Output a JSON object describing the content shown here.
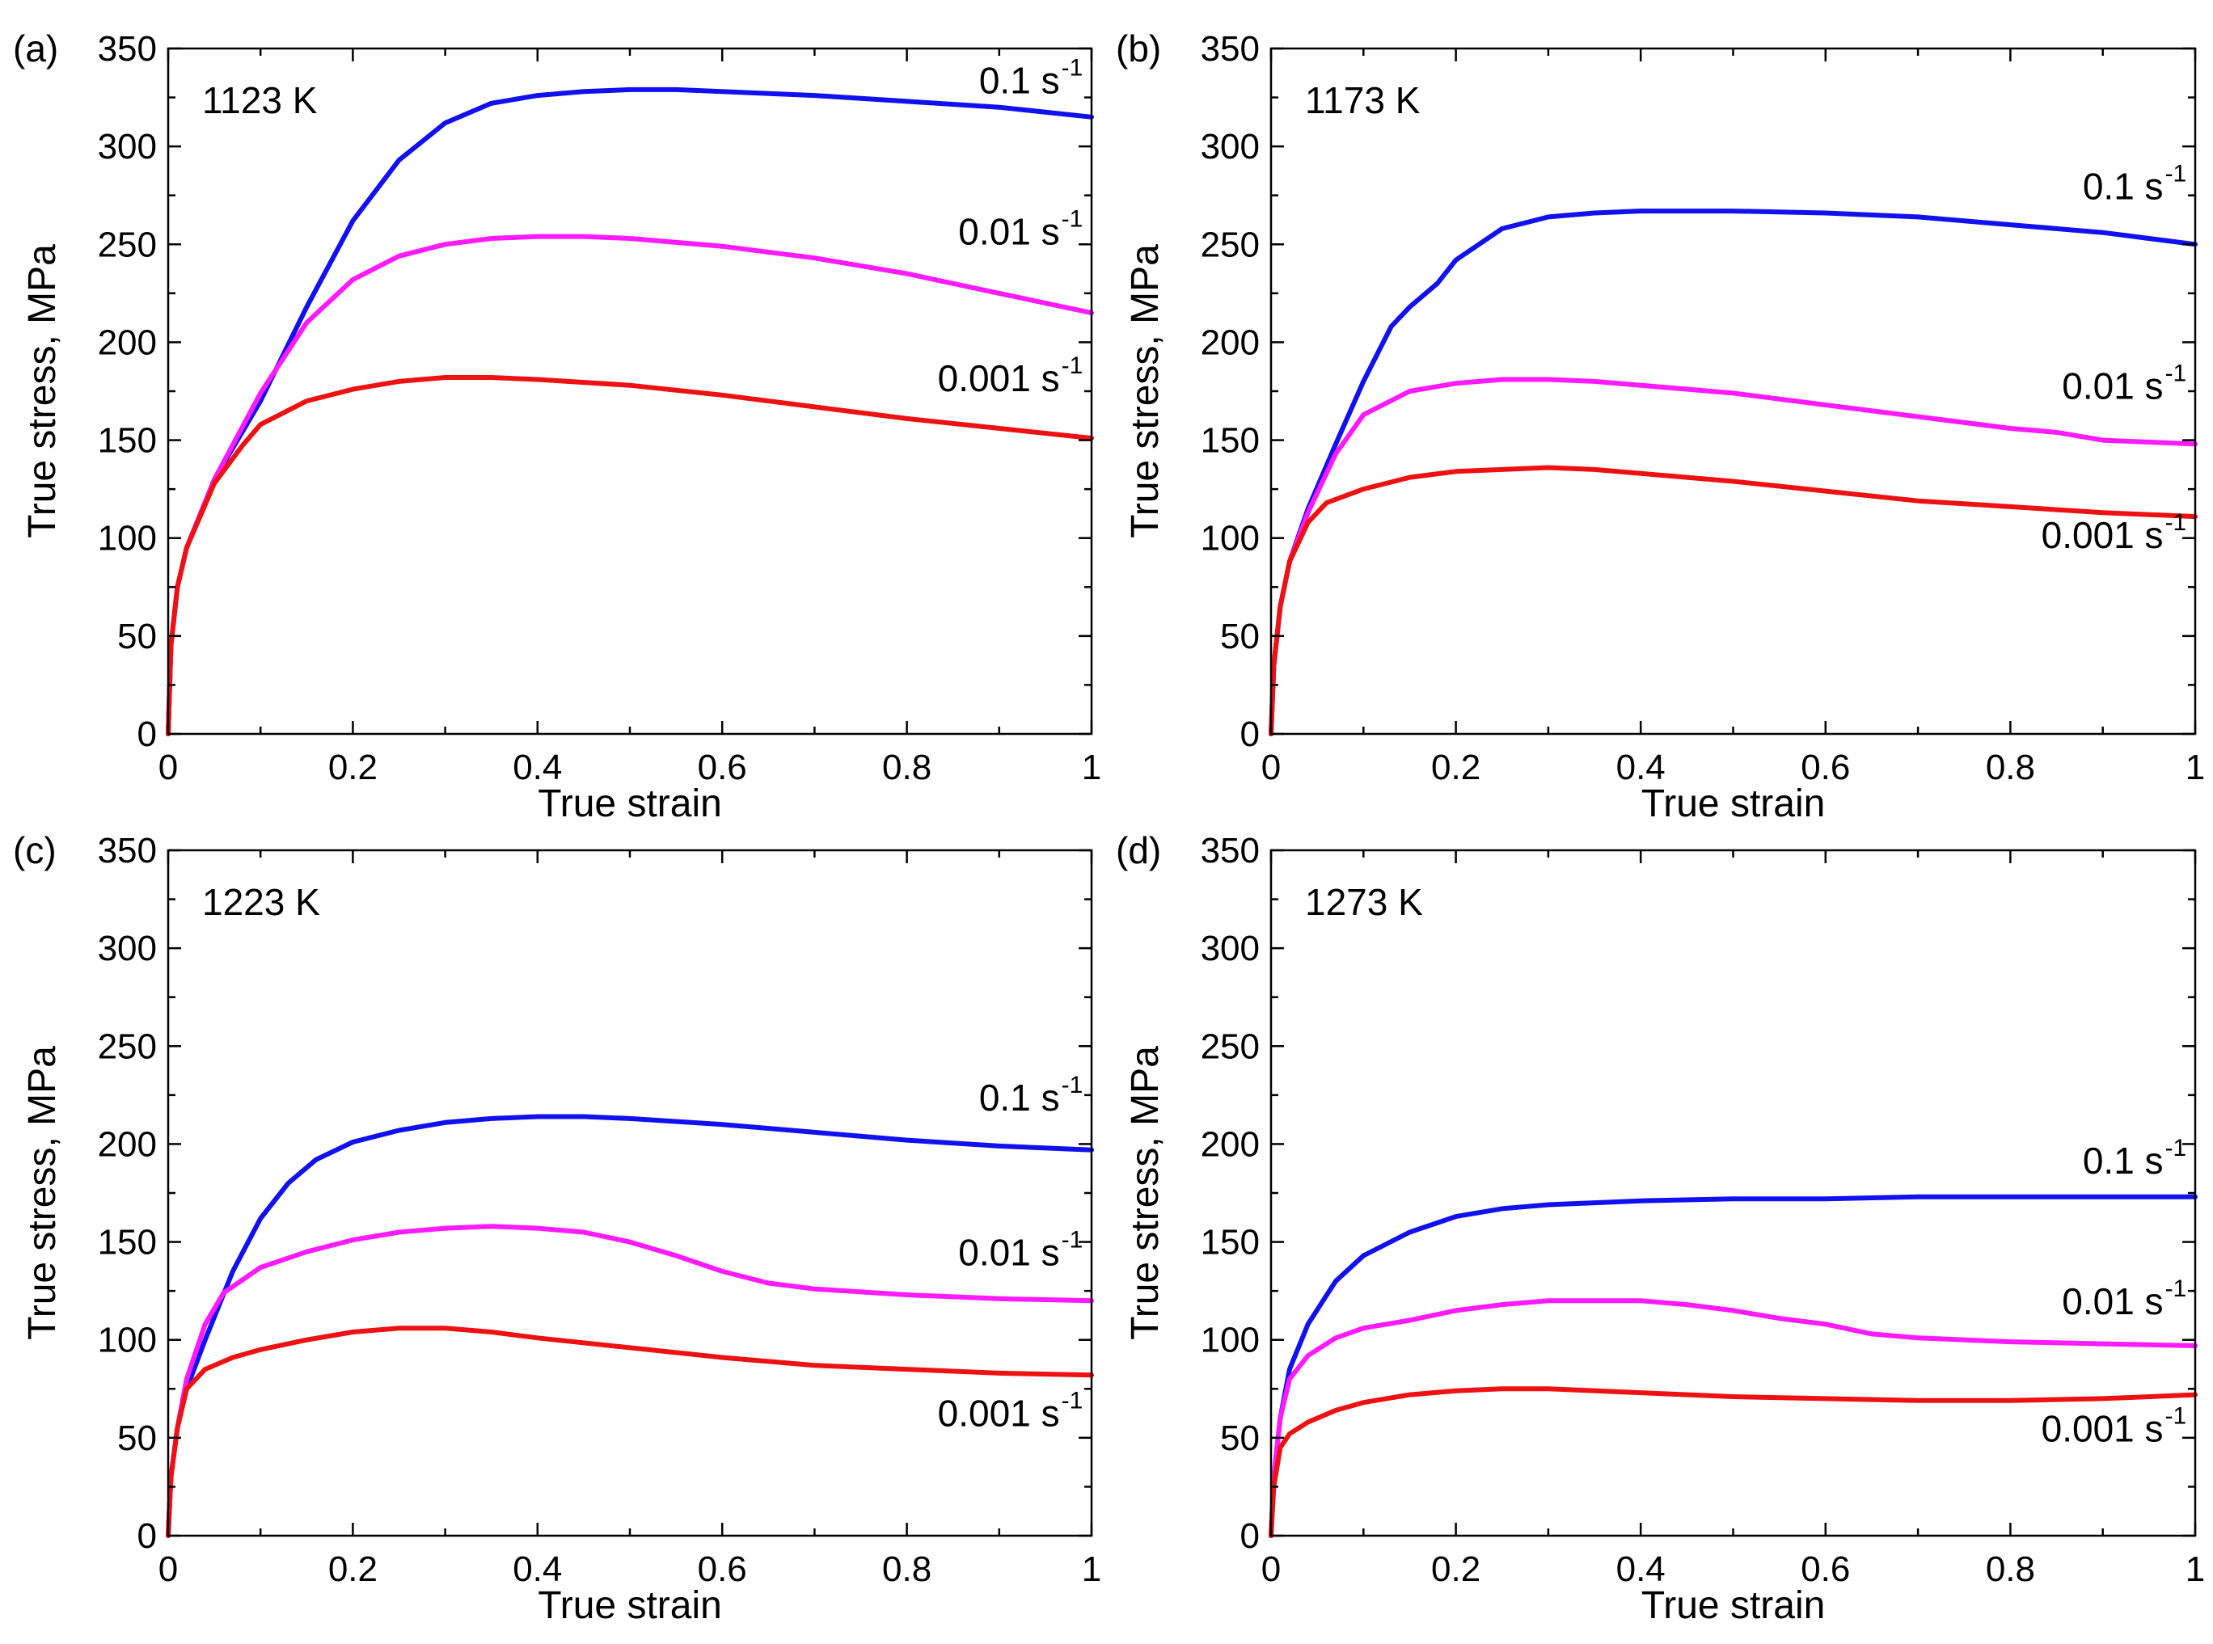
{
  "colors": {
    "rate_0_1": "#1010f0",
    "rate_0_01": "#ff1aff",
    "rate_0_001": "#ee1111"
  },
  "chart_data": [
    {
      "type": "line",
      "panel_label": "(a)",
      "annotation": "1123 K",
      "xlabel": "True strain",
      "ylabel": "True stress, MPa",
      "xlim": [
        0,
        1
      ],
      "ylim": [
        0,
        350
      ],
      "xticks": [
        "0",
        "0.2",
        "0.4",
        "0.6",
        "0.8",
        "1"
      ],
      "yticks": [
        "0",
        "50",
        "100",
        "150",
        "200",
        "250",
        "300",
        "350"
      ],
      "series": [
        {
          "name": "0.1 s",
          "unit_exp": "-1",
          "color_key": "rate_0_1",
          "x": [
            0,
            0.003,
            0.01,
            0.02,
            0.05,
            0.1,
            0.15,
            0.2,
            0.25,
            0.3,
            0.35,
            0.4,
            0.45,
            0.5,
            0.55,
            0.6,
            0.7,
            0.8,
            0.9,
            1.0
          ],
          "y": [
            0,
            45,
            75,
            95,
            130,
            170,
            218,
            262,
            293,
            312,
            322,
            326,
            328,
            329,
            329,
            328,
            326,
            323,
            320,
            315
          ]
        },
        {
          "name": "0.01 s",
          "unit_exp": "-1",
          "color_key": "rate_0_01",
          "x": [
            0,
            0.003,
            0.01,
            0.02,
            0.05,
            0.1,
            0.15,
            0.2,
            0.25,
            0.3,
            0.35,
            0.4,
            0.45,
            0.5,
            0.6,
            0.7,
            0.8,
            0.9,
            1.0
          ],
          "y": [
            0,
            45,
            75,
            95,
            130,
            174,
            210,
            232,
            244,
            250,
            253,
            254,
            254,
            253,
            249,
            243,
            235,
            225,
            215
          ]
        },
        {
          "name": "0.001 s",
          "unit_exp": "-1",
          "color_key": "rate_0_001",
          "x": [
            0,
            0.003,
            0.01,
            0.02,
            0.05,
            0.08,
            0.1,
            0.15,
            0.2,
            0.25,
            0.3,
            0.35,
            0.4,
            0.5,
            0.6,
            0.7,
            0.8,
            0.9,
            1.0
          ],
          "y": [
            0,
            45,
            75,
            95,
            128,
            147,
            158,
            170,
            176,
            180,
            182,
            182,
            181,
            178,
            173,
            167,
            161,
            156,
            151
          ]
        }
      ]
    },
    {
      "type": "line",
      "panel_label": "(b)",
      "annotation": "1173 K",
      "xlabel": "True strain",
      "ylabel": "True stress, MPa",
      "xlim": [
        0,
        1
      ],
      "ylim": [
        0,
        350
      ],
      "xticks": [
        "0",
        "0.2",
        "0.4",
        "0.6",
        "0.8",
        "1"
      ],
      "yticks": [
        "0",
        "50",
        "100",
        "150",
        "200",
        "250",
        "300",
        "350"
      ],
      "series": [
        {
          "name": "0.1 s",
          "unit_exp": "-1",
          "color_key": "rate_0_1",
          "x": [
            0,
            0.003,
            0.01,
            0.02,
            0.04,
            0.07,
            0.1,
            0.13,
            0.15,
            0.18,
            0.2,
            0.25,
            0.3,
            0.35,
            0.4,
            0.5,
            0.6,
            0.7,
            0.8,
            0.9,
            1.0
          ],
          "y": [
            0,
            35,
            65,
            88,
            115,
            148,
            180,
            208,
            218,
            230,
            242,
            258,
            264,
            266,
            267,
            267,
            266,
            264,
            260,
            256,
            250
          ]
        },
        {
          "name": "0.01 s",
          "unit_exp": "-1",
          "color_key": "rate_0_01",
          "x": [
            0,
            0.003,
            0.01,
            0.02,
            0.04,
            0.07,
            0.1,
            0.15,
            0.2,
            0.25,
            0.3,
            0.35,
            0.4,
            0.5,
            0.6,
            0.7,
            0.8,
            0.85,
            0.9,
            0.95,
            1.0
          ],
          "y": [
            0,
            35,
            65,
            88,
            113,
            143,
            163,
            175,
            179,
            181,
            181,
            180,
            178,
            174,
            168,
            162,
            156,
            154,
            150,
            149,
            148
          ]
        },
        {
          "name": "0.001 s",
          "unit_exp": "-1",
          "color_key": "rate_0_001",
          "x": [
            0,
            0.003,
            0.01,
            0.02,
            0.04,
            0.06,
            0.1,
            0.15,
            0.2,
            0.25,
            0.3,
            0.35,
            0.4,
            0.5,
            0.6,
            0.7,
            0.8,
            0.9,
            1.0
          ],
          "y": [
            0,
            35,
            65,
            88,
            108,
            118,
            125,
            131,
            134,
            135,
            136,
            135,
            133,
            129,
            124,
            119,
            116,
            113,
            111
          ]
        }
      ]
    },
    {
      "type": "line",
      "panel_label": "(c)",
      "annotation": "1223 K",
      "xlabel": "True strain",
      "ylabel": "True stress, MPa",
      "xlim": [
        0,
        1
      ],
      "ylim": [
        0,
        350
      ],
      "xticks": [
        "0",
        "0.2",
        "0.4",
        "0.6",
        "0.8",
        "1"
      ],
      "yticks": [
        "0",
        "50",
        "100",
        "150",
        "200",
        "250",
        "300",
        "350"
      ],
      "series": [
        {
          "name": "0.1 s",
          "unit_exp": "-1",
          "color_key": "rate_0_1",
          "x": [
            0,
            0.003,
            0.01,
            0.02,
            0.04,
            0.07,
            0.1,
            0.13,
            0.16,
            0.2,
            0.25,
            0.3,
            0.35,
            0.4,
            0.45,
            0.5,
            0.6,
            0.7,
            0.8,
            0.9,
            1.0
          ],
          "y": [
            0,
            30,
            55,
            75,
            100,
            135,
            162,
            180,
            192,
            201,
            207,
            211,
            213,
            214,
            214,
            213,
            210,
            206,
            202,
            199,
            197
          ]
        },
        {
          "name": "0.01 s",
          "unit_exp": "-1",
          "color_key": "rate_0_01",
          "x": [
            0,
            0.003,
            0.01,
            0.02,
            0.04,
            0.06,
            0.1,
            0.15,
            0.2,
            0.25,
            0.3,
            0.35,
            0.4,
            0.45,
            0.5,
            0.55,
            0.6,
            0.65,
            0.7,
            0.8,
            0.9,
            1.0
          ],
          "y": [
            0,
            30,
            55,
            80,
            108,
            124,
            137,
            145,
            151,
            155,
            157,
            158,
            157,
            155,
            150,
            143,
            135,
            129,
            126,
            123,
            121,
            120
          ]
        },
        {
          "name": "0.001 s",
          "unit_exp": "-1",
          "color_key": "rate_0_001",
          "x": [
            0,
            0.003,
            0.01,
            0.02,
            0.04,
            0.07,
            0.1,
            0.15,
            0.2,
            0.25,
            0.3,
            0.35,
            0.4,
            0.5,
            0.6,
            0.7,
            0.8,
            0.9,
            1.0
          ],
          "y": [
            0,
            30,
            55,
            75,
            85,
            91,
            95,
            100,
            104,
            106,
            106,
            104,
            101,
            96,
            91,
            87,
            85,
            83,
            82
          ]
        }
      ]
    },
    {
      "type": "line",
      "panel_label": "(d)",
      "annotation": "1273 K",
      "xlabel": "True strain",
      "ylabel": "True stress, MPa",
      "xlim": [
        0,
        1
      ],
      "ylim": [
        0,
        350
      ],
      "xticks": [
        "0",
        "0.2",
        "0.4",
        "0.6",
        "0.8",
        "1"
      ],
      "yticks": [
        "0",
        "50",
        "100",
        "150",
        "200",
        "250",
        "300",
        "350"
      ],
      "series": [
        {
          "name": "0.1 s",
          "unit_exp": "-1",
          "color_key": "rate_0_1",
          "x": [
            0,
            0.003,
            0.01,
            0.02,
            0.04,
            0.07,
            0.1,
            0.15,
            0.2,
            0.25,
            0.3,
            0.4,
            0.5,
            0.6,
            0.7,
            0.8,
            0.9,
            1.0
          ],
          "y": [
            0,
            30,
            60,
            85,
            108,
            130,
            143,
            155,
            163,
            167,
            169,
            171,
            172,
            172,
            173,
            173,
            173,
            173
          ]
        },
        {
          "name": "0.01 s",
          "unit_exp": "-1",
          "color_key": "rate_0_01",
          "x": [
            0,
            0.003,
            0.01,
            0.02,
            0.04,
            0.07,
            0.1,
            0.15,
            0.2,
            0.25,
            0.3,
            0.35,
            0.4,
            0.45,
            0.5,
            0.55,
            0.6,
            0.65,
            0.7,
            0.8,
            0.9,
            1.0
          ],
          "y": [
            0,
            30,
            60,
            80,
            92,
            101,
            106,
            110,
            115,
            118,
            120,
            120,
            120,
            118,
            115,
            111,
            108,
            103,
            101,
            99,
            98,
            97
          ]
        },
        {
          "name": "0.001 s",
          "unit_exp": "-1",
          "color_key": "rate_0_001",
          "x": [
            0,
            0.003,
            0.01,
            0.02,
            0.04,
            0.07,
            0.1,
            0.15,
            0.2,
            0.25,
            0.3,
            0.4,
            0.5,
            0.6,
            0.7,
            0.8,
            0.9,
            1.0
          ],
          "y": [
            0,
            25,
            45,
            52,
            58,
            64,
            68,
            72,
            74,
            75,
            75,
            73,
            71,
            70,
            69,
            69,
            70,
            72
          ]
        }
      ]
    }
  ]
}
